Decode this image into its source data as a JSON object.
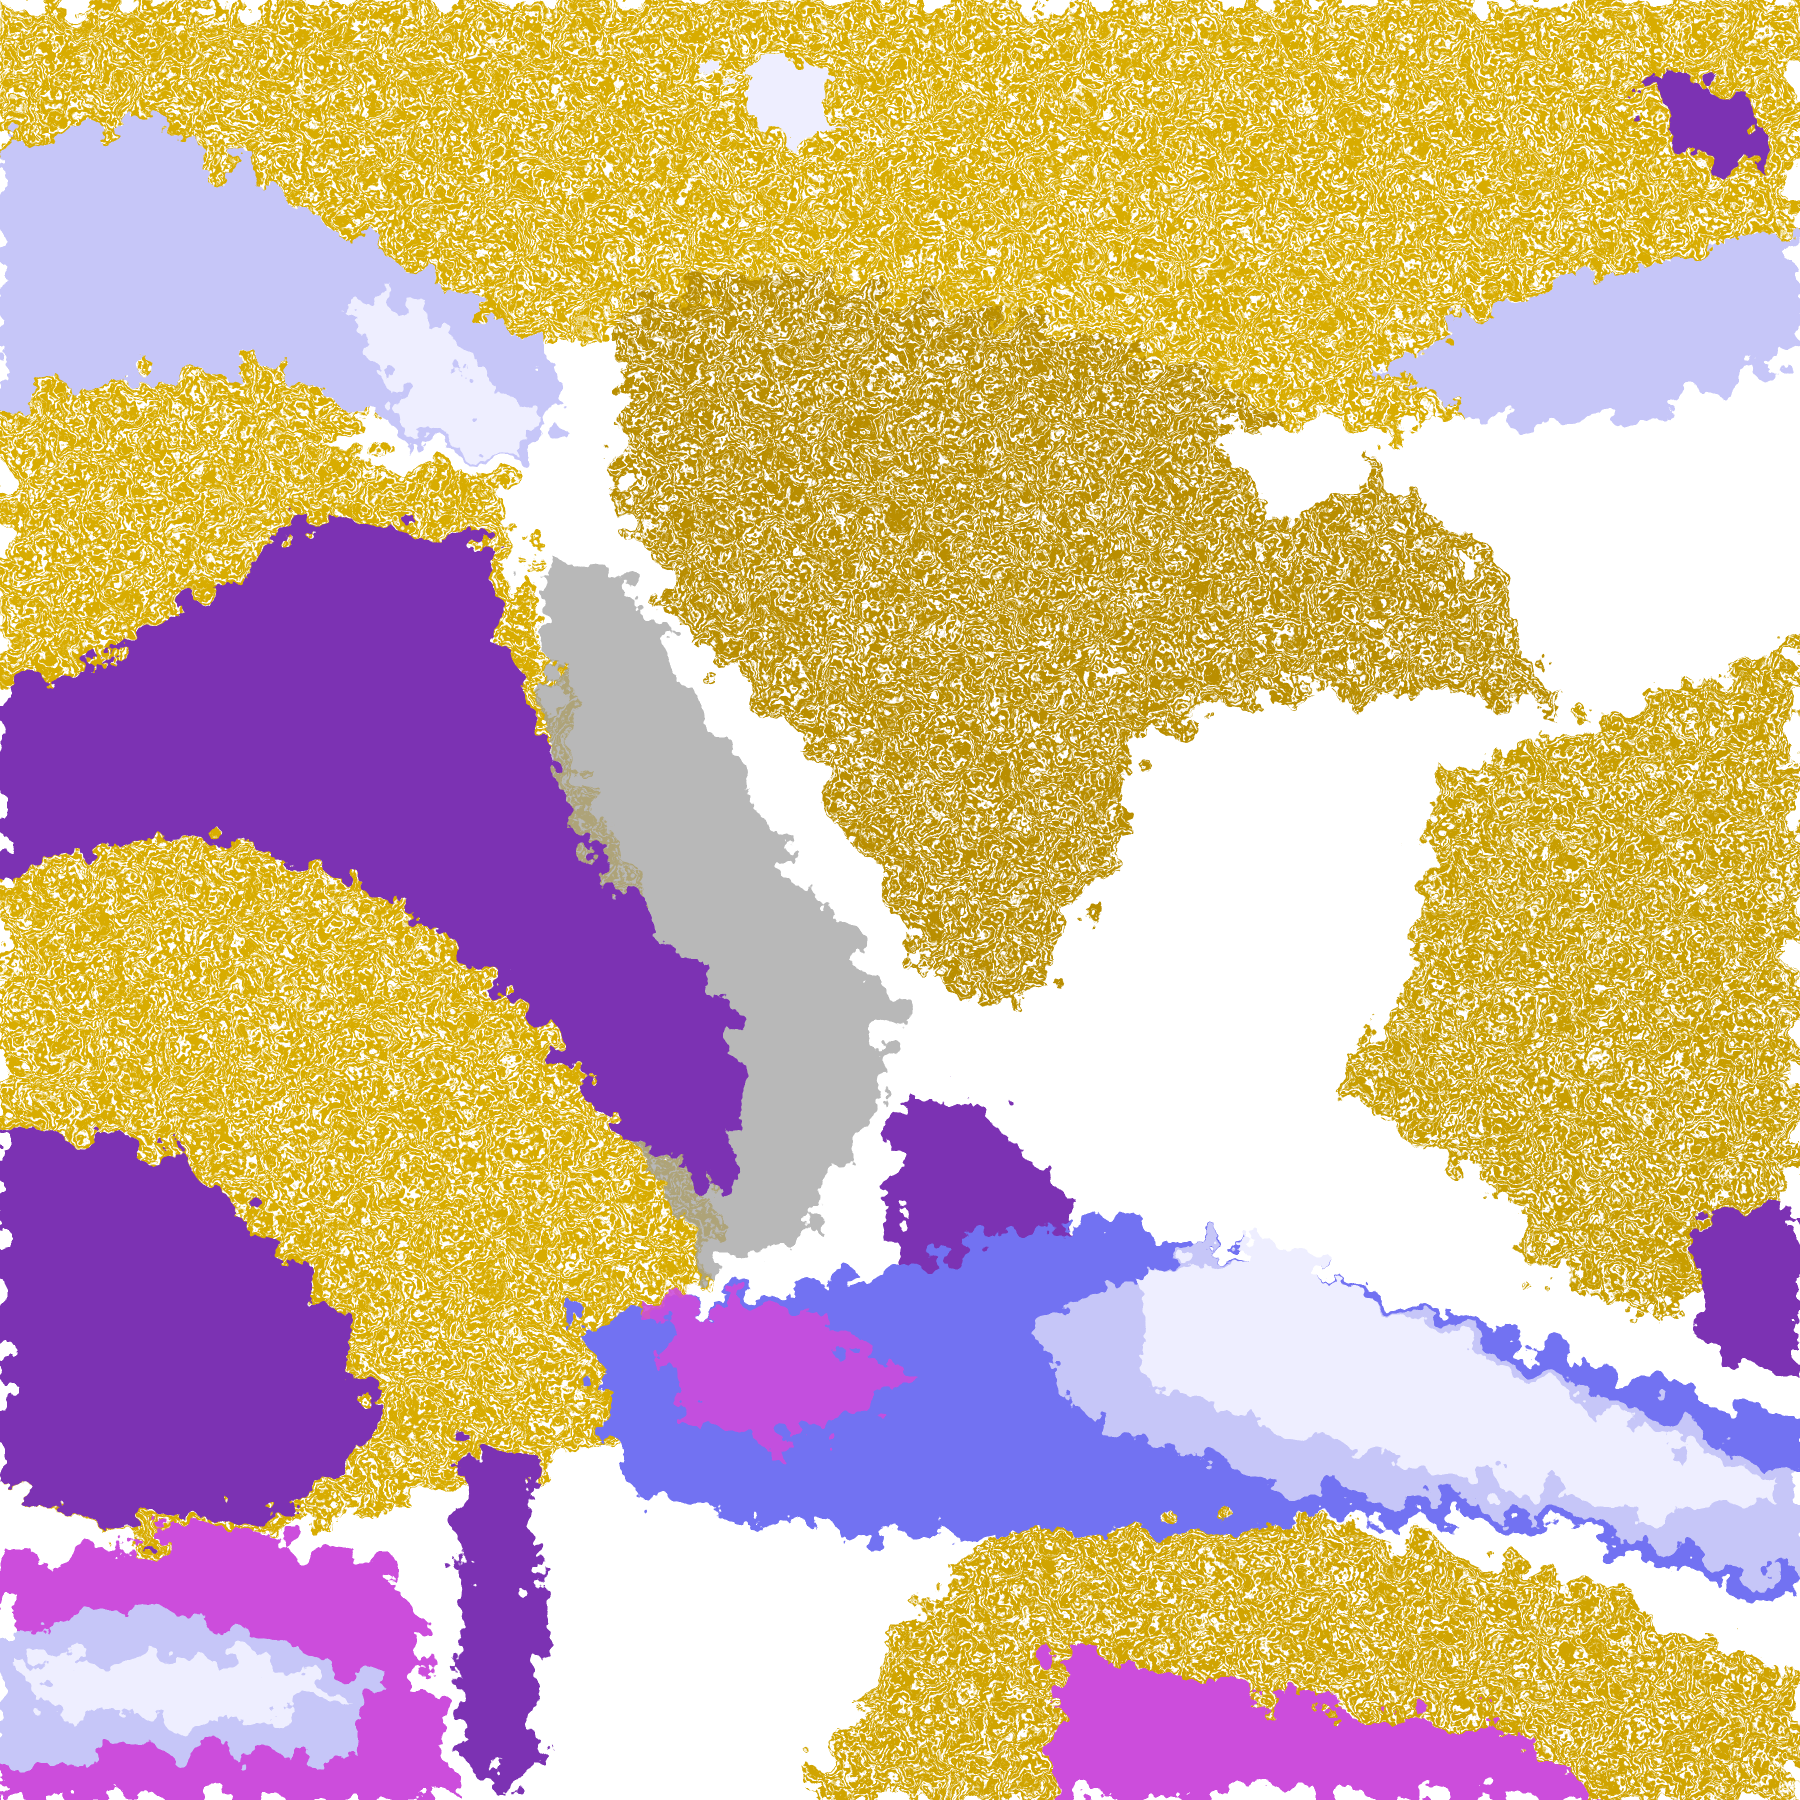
{
  "image": {
    "kind": "false-color satellite cloud/surface classification",
    "palette": {
      "clear": "#ffffff",
      "gold": "#d8ac00",
      "dark_gold": "#b08600",
      "purple": "#7b33b3",
      "magenta": "#cc4ddc",
      "blue": "#7272f2",
      "lavender": "#c6c6f8",
      "pale": "#eeeeff",
      "gray": "#929292"
    }
  }
}
